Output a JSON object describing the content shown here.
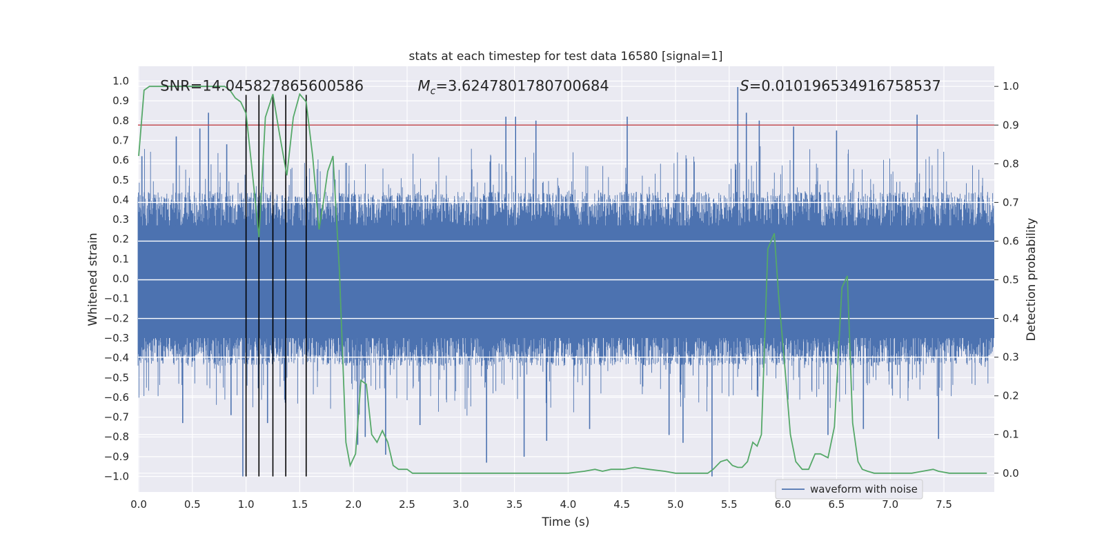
{
  "chart_data": {
    "type": "line",
    "title": "stats at each timestep for test data 16580 [signal=1]",
    "xlabel": "Time (s)",
    "ylabel": "Whitened strain",
    "y2label": "Detection probability",
    "xlim": [
      0.0,
      8.0
    ],
    "ylim": [
      -1.09,
      1.05
    ],
    "y2lim": [
      -0.05,
      1.04
    ],
    "grid": true,
    "legend_position": "bottom-right",
    "colors": {
      "plot_bg": "#eaeaf2",
      "waveform": "#4c72b0",
      "probability": "#55a868",
      "threshold": "#c44e52",
      "markers": "#000000"
    },
    "x_ticks": [
      "0.0",
      "0.5",
      "1.0",
      "1.5",
      "2.0",
      "2.5",
      "3.0",
      "3.5",
      "4.0",
      "4.5",
      "5.0",
      "5.5",
      "6.0",
      "6.5",
      "7.0",
      "7.5"
    ],
    "y_ticks": [
      "1.0",
      "0.9",
      "0.8",
      "0.7",
      "0.6",
      "0.5",
      "0.4",
      "0.3",
      "0.2",
      "0.1",
      "0.0",
      "-0.1",
      "-0.2",
      "-0.3",
      "-0.4",
      "-0.5",
      "-0.6",
      "-0.7",
      "-0.8",
      "-0.9",
      "-1.0"
    ],
    "y2_ticks": [
      "1.0",
      "0.9",
      "0.8",
      "0.7",
      "0.6",
      "0.5",
      "0.4",
      "0.3",
      "0.2",
      "0.1",
      "0.0"
    ],
    "annotations": [
      {
        "text": "SNR=14.045827865600586",
        "x": 0.2,
        "y": 0.975
      },
      {
        "prefix": "M",
        "sub": "c",
        "text": "=3.6247801780700684",
        "x": 2.6,
        "y": 0.975
      },
      {
        "prefix": "S",
        "text": "=0.010196534916758537",
        "x": 5.6,
        "y": 0.975
      }
    ],
    "series": [
      {
        "name": "waveform with noise",
        "axis": "left",
        "style": "noise-envelope",
        "envelope_typical": 0.42,
        "spikes": [
          {
            "x": 0.03,
            "y": 0.62
          },
          {
            "x": 0.35,
            "y": 0.72
          },
          {
            "x": 0.57,
            "y": 0.76
          },
          {
            "x": 0.65,
            "y": 0.84
          },
          {
            "x": 0.82,
            "y": 0.68
          },
          {
            "x": 1.0,
            "y": 0.72
          },
          {
            "x": 3.42,
            "y": 0.82
          },
          {
            "x": 3.51,
            "y": 0.82
          },
          {
            "x": 3.7,
            "y": 0.8
          },
          {
            "x": 4.55,
            "y": 0.82
          },
          {
            "x": 5.58,
            "y": 0.97
          },
          {
            "x": 5.66,
            "y": 0.84
          },
          {
            "x": 5.78,
            "y": 0.8
          },
          {
            "x": 6.1,
            "y": 0.77
          },
          {
            "x": 6.5,
            "y": 0.75
          },
          {
            "x": 7.25,
            "y": 0.83
          },
          {
            "x": 0.41,
            "y": -0.73
          },
          {
            "x": 0.86,
            "y": -0.69
          },
          {
            "x": 0.97,
            "y": -1.0
          },
          {
            "x": 1.2,
            "y": -0.73
          },
          {
            "x": 2.04,
            "y": -0.84
          },
          {
            "x": 2.11,
            "y": -0.8
          },
          {
            "x": 2.3,
            "y": -0.89
          },
          {
            "x": 2.62,
            "y": -0.74
          },
          {
            "x": 3.24,
            "y": -0.93
          },
          {
            "x": 3.59,
            "y": -0.9
          },
          {
            "x": 3.8,
            "y": -0.82
          },
          {
            "x": 4.2,
            "y": -0.76
          },
          {
            "x": 4.94,
            "y": -0.79
          },
          {
            "x": 5.07,
            "y": -0.83
          },
          {
            "x": 5.34,
            "y": -1.0
          },
          {
            "x": 6.42,
            "y": -0.79
          },
          {
            "x": 6.75,
            "y": -0.76
          },
          {
            "x": 7.45,
            "y": -0.81
          }
        ]
      },
      {
        "name": "",
        "axis": "right",
        "style": "line",
        "x": [
          0.0,
          0.05,
          0.1,
          0.15,
          0.2,
          0.3,
          0.4,
          0.5,
          0.6,
          0.7,
          0.75,
          0.8,
          0.85,
          0.9,
          0.95,
          1.0,
          1.05,
          1.12,
          1.18,
          1.25,
          1.31,
          1.38,
          1.44,
          1.5,
          1.56,
          1.62,
          1.68,
          1.72,
          1.76,
          1.81,
          1.87,
          1.93,
          1.97,
          2.02,
          2.07,
          2.12,
          2.17,
          2.22,
          2.27,
          2.32,
          2.37,
          2.42,
          2.5,
          2.55,
          2.62,
          2.7,
          2.8,
          3.0,
          3.2,
          3.4,
          3.6,
          3.8,
          4.0,
          4.15,
          4.25,
          4.32,
          4.4,
          4.45,
          4.52,
          4.62,
          4.75,
          4.9,
          5.0,
          5.1,
          5.2,
          5.3,
          5.35,
          5.42,
          5.48,
          5.53,
          5.58,
          5.62,
          5.67,
          5.72,
          5.76,
          5.8,
          5.86,
          5.92,
          5.96,
          6.02,
          6.07,
          6.12,
          6.18,
          6.24,
          6.3,
          6.35,
          6.42,
          6.48,
          6.55,
          6.6,
          6.65,
          6.7,
          6.74,
          6.79,
          6.85,
          6.9,
          6.96,
          7.0,
          7.05,
          7.1,
          7.2,
          7.3,
          7.4,
          7.45,
          7.55,
          7.7,
          7.9
        ],
        "y": [
          0.82,
          0.99,
          1.0,
          1.0,
          1.0,
          1.0,
          1.0,
          1.0,
          1.0,
          1.0,
          1.0,
          1.0,
          0.99,
          0.97,
          0.96,
          0.93,
          0.8,
          0.61,
          0.92,
          0.98,
          0.88,
          0.77,
          0.92,
          0.98,
          0.96,
          0.82,
          0.63,
          0.7,
          0.78,
          0.82,
          0.52,
          0.08,
          0.02,
          0.05,
          0.24,
          0.23,
          0.1,
          0.08,
          0.11,
          0.08,
          0.02,
          0.01,
          0.01,
          0.0,
          0.0,
          0.0,
          0.0,
          0.0,
          0.0,
          0.0,
          0.0,
          0.0,
          0.0,
          0.005,
          0.01,
          0.005,
          0.01,
          0.01,
          0.01,
          0.015,
          0.01,
          0.005,
          0.0,
          0.0,
          0.0,
          0.0,
          0.01,
          0.03,
          0.035,
          0.02,
          0.015,
          0.015,
          0.03,
          0.08,
          0.07,
          0.1,
          0.58,
          0.62,
          0.46,
          0.27,
          0.1,
          0.03,
          0.01,
          0.01,
          0.05,
          0.05,
          0.04,
          0.12,
          0.48,
          0.51,
          0.13,
          0.03,
          0.01,
          0.005,
          0.0,
          0.0,
          0.0,
          0.0,
          0.0,
          0.0,
          0.0,
          0.005,
          0.01,
          0.005,
          0.0,
          0.0,
          0.0
        ]
      }
    ],
    "threshold_right_axis": 0.9,
    "vertical_markers_x": [
      1.0,
      1.12,
      1.25,
      1.37,
      1.56
    ],
    "legend": [
      {
        "label": "waveform with noise",
        "color": "#4c72b0"
      }
    ]
  }
}
